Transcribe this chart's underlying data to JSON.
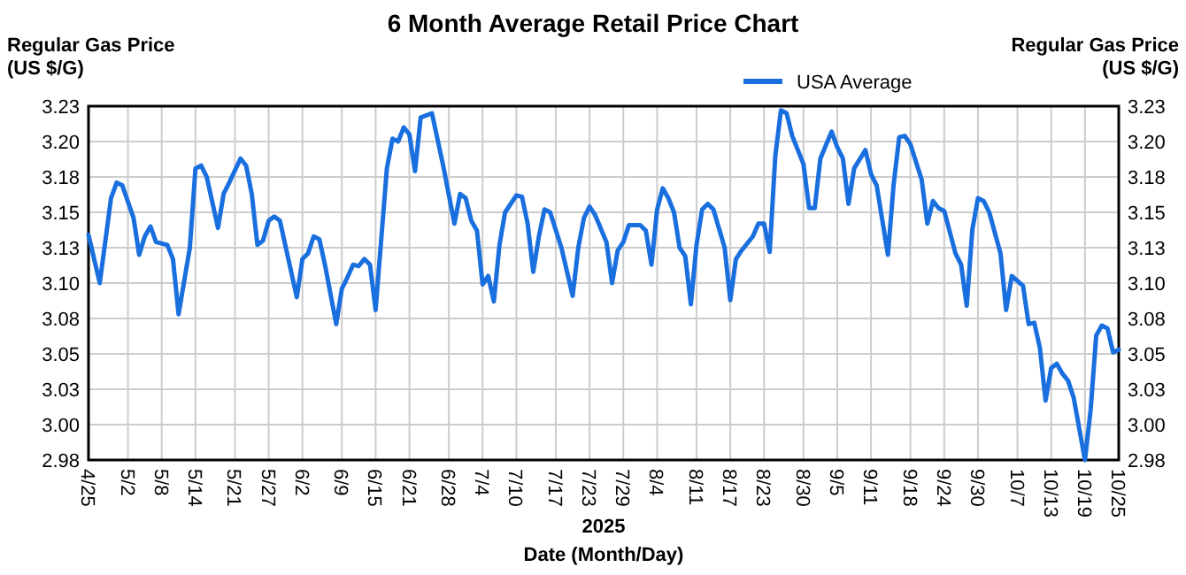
{
  "chart_data": {
    "type": "line",
    "title": "6 Month Average Retail Price Chart",
    "xlabel": "Date (Month/Day)",
    "ylabel": "Regular Gas Price (US $/G)",
    "y2label": "Regular Gas Price (US $/G)",
    "annotations": [
      "2025"
    ],
    "x": [
      "--04-25",
      "--04-27",
      "--04-29",
      "--04-30",
      "--05-01",
      "--05-03",
      "--05-04",
      "--05-05",
      "--05-06",
      "--05-07",
      "--05-09",
      "--05-10",
      "--05-11",
      "--05-13",
      "--05-14",
      "--05-15",
      "--05-16",
      "--05-18",
      "--05-19",
      "--05-20",
      "--05-22",
      "--05-23",
      "--05-24",
      "--05-25",
      "--05-26",
      "--05-27",
      "--05-28",
      "--05-29",
      "--06-01",
      "--06-02",
      "--06-03",
      "--06-04",
      "--06-05",
      "--06-06",
      "--06-08",
      "--06-09",
      "--06-10",
      "--06-11",
      "--06-12",
      "--06-13",
      "--06-14",
      "--06-15",
      "--06-17",
      "--06-18",
      "--06-19",
      "--06-20",
      "--06-21",
      "--06-22",
      "--06-23",
      "--06-25",
      "--06-27",
      "--06-29",
      "--06-30",
      "--07-01",
      "--07-02",
      "--07-03",
      "--07-04",
      "--07-05",
      "--07-06",
      "--07-07",
      "--07-08",
      "--07-10",
      "--07-11",
      "--07-12",
      "--07-13",
      "--07-14",
      "--07-15",
      "--07-16",
      "--07-18",
      "--07-20",
      "--07-21",
      "--07-22",
      "--07-23",
      "--07-24",
      "--07-26",
      "--07-27",
      "--07-28",
      "--07-29",
      "--07-30",
      "--08-01",
      "--08-02",
      "--08-03",
      "--08-04",
      "--08-05",
      "--08-06",
      "--08-07",
      "--08-08",
      "--08-09",
      "--08-10",
      "--08-11",
      "--08-12",
      "--08-13",
      "--08-14",
      "--08-16",
      "--08-17",
      "--08-18",
      "--08-19",
      "--08-21",
      "--08-22",
      "--08-23",
      "--08-24",
      "--08-25",
      "--08-26",
      "--08-27",
      "--08-28",
      "--08-30",
      "--08-31",
      "--09-01",
      "--09-02",
      "--09-04",
      "--09-05",
      "--09-06",
      "--09-07",
      "--09-08",
      "--09-10",
      "--09-11",
      "--09-12",
      "--09-14",
      "--09-15",
      "--09-16",
      "--09-17",
      "--09-18",
      "--09-20",
      "--09-21",
      "--09-22",
      "--09-23",
      "--09-24",
      "--09-26",
      "--09-27",
      "--09-28",
      "--09-29",
      "--09-30",
      "--10-01",
      "--10-02",
      "--10-04",
      "--10-05",
      "--10-06",
      "--10-08",
      "--10-09",
      "--10-10",
      "--10-11",
      "--10-12",
      "--10-13",
      "--10-14",
      "--10-15",
      "--10-16",
      "--10-17",
      "--10-19",
      "--10-20",
      "--10-21",
      "--10-22",
      "--10-23",
      "--10-24",
      "--10-25"
    ],
    "series": [
      {
        "name": "USA Average",
        "color": "#1a6fdf",
        "values": [
          3.134,
          3.1,
          3.16,
          3.171,
          3.169,
          3.146,
          3.12,
          3.133,
          3.14,
          3.129,
          3.127,
          3.117,
          3.078,
          3.125,
          3.181,
          3.183,
          3.175,
          3.139,
          3.163,
          3.171,
          3.188,
          3.183,
          3.163,
          3.127,
          3.13,
          3.144,
          3.147,
          3.144,
          3.09,
          3.117,
          3.121,
          3.133,
          3.131,
          3.113,
          3.071,
          3.096,
          3.104,
          3.113,
          3.112,
          3.117,
          3.113,
          3.081,
          3.181,
          3.202,
          3.2,
          3.21,
          3.205,
          3.179,
          3.217,
          3.22,
          3.183,
          3.142,
          3.163,
          3.16,
          3.144,
          3.137,
          3.099,
          3.105,
          3.087,
          3.127,
          3.15,
          3.162,
          3.161,
          3.142,
          3.108,
          3.133,
          3.152,
          3.15,
          3.125,
          3.091,
          3.125,
          3.146,
          3.154,
          3.148,
          3.129,
          3.1,
          3.123,
          3.129,
          3.141,
          3.141,
          3.137,
          3.113,
          3.152,
          3.167,
          3.16,
          3.15,
          3.125,
          3.119,
          3.085,
          3.127,
          3.152,
          3.156,
          3.152,
          3.125,
          3.088,
          3.117,
          3.123,
          3.133,
          3.142,
          3.142,
          3.122,
          3.19,
          3.222,
          3.22,
          3.204,
          3.184,
          3.153,
          3.153,
          3.188,
          3.207,
          3.196,
          3.188,
          3.156,
          3.181,
          3.194,
          3.177,
          3.169,
          3.12,
          3.169,
          3.203,
          3.204,
          3.198,
          3.173,
          3.142,
          3.158,
          3.153,
          3.151,
          3.121,
          3.113,
          3.084,
          3.138,
          3.16,
          3.158,
          3.15,
          3.121,
          3.081,
          3.105,
          3.098,
          3.071,
          3.072,
          3.054,
          3.017,
          3.04,
          3.043,
          3.036,
          3.031,
          3.019,
          2.975,
          3.01,
          3.063,
          3.07,
          3.068,
          3.051,
          3.053
        ]
      }
    ],
    "xlim": [
      "--04-25",
      "--10-25"
    ],
    "xticks": [
      {
        "value": "--04-25",
        "label": "4/25"
      },
      {
        "value": "--05-02",
        "label": "5/2"
      },
      {
        "value": "--05-08",
        "label": "5/8"
      },
      {
        "value": "--05-14",
        "label": "5/14"
      },
      {
        "value": "--05-21",
        "label": "5/21"
      },
      {
        "value": "--05-27",
        "label": "5/27"
      },
      {
        "value": "--06-02",
        "label": "6/2"
      },
      {
        "value": "--06-09",
        "label": "6/9"
      },
      {
        "value": "--06-15",
        "label": "6/15"
      },
      {
        "value": "--06-21",
        "label": "6/21"
      },
      {
        "value": "--06-28",
        "label": "6/28"
      },
      {
        "value": "--07-04",
        "label": "7/4"
      },
      {
        "value": "--07-10",
        "label": "7/10"
      },
      {
        "value": "--07-17",
        "label": "7/17"
      },
      {
        "value": "--07-23",
        "label": "7/23"
      },
      {
        "value": "--07-29",
        "label": "7/29"
      },
      {
        "value": "--08-04",
        "label": "8/4"
      },
      {
        "value": "--08-11",
        "label": "8/11"
      },
      {
        "value": "--08-17",
        "label": "8/17"
      },
      {
        "value": "--08-23",
        "label": "8/23"
      },
      {
        "value": "--08-30",
        "label": "8/30"
      },
      {
        "value": "--09-05",
        "label": "9/5"
      },
      {
        "value": "--09-11",
        "label": "9/11"
      },
      {
        "value": "--09-18",
        "label": "9/18"
      },
      {
        "value": "--09-24",
        "label": "9/24"
      },
      {
        "value": "--09-30",
        "label": "9/30"
      },
      {
        "value": "--10-07",
        "label": "10/7"
      },
      {
        "value": "--10-13",
        "label": "10/13"
      },
      {
        "value": "--10-19",
        "label": "10/19"
      },
      {
        "value": "--10-25",
        "label": "10/25"
      }
    ],
    "ylim": [
      2.975,
      3.225
    ],
    "yticks": [
      {
        "value": 2.975,
        "label": "2.98"
      },
      {
        "value": 3.0,
        "label": "3.00"
      },
      {
        "value": 3.025,
        "label": "3.03"
      },
      {
        "value": 3.05,
        "label": "3.05"
      },
      {
        "value": 3.075,
        "label": "3.08"
      },
      {
        "value": 3.1,
        "label": "3.10"
      },
      {
        "value": 3.125,
        "label": "3.13"
      },
      {
        "value": 3.15,
        "label": "3.15"
      },
      {
        "value": 3.175,
        "label": "3.18"
      },
      {
        "value": 3.2,
        "label": "3.20"
      },
      {
        "value": 3.225,
        "label": "3.23"
      }
    ],
    "y2lim": [
      2.975,
      3.225
    ],
    "y2ticks": [
      {
        "value": 2.975,
        "label": "2.98"
      },
      {
        "value": 3.0,
        "label": "3.00"
      },
      {
        "value": 3.025,
        "label": "3.03"
      },
      {
        "value": 3.05,
        "label": "3.05"
      },
      {
        "value": 3.075,
        "label": "3.08"
      },
      {
        "value": 3.1,
        "label": "3.10"
      },
      {
        "value": 3.125,
        "label": "3.13"
      },
      {
        "value": 3.15,
        "label": "3.15"
      },
      {
        "value": 3.175,
        "label": "3.18"
      },
      {
        "value": 3.2,
        "label": "3.20"
      },
      {
        "value": 3.225,
        "label": "3.23"
      }
    ],
    "grid": true,
    "legend": "top right",
    "marker": "none",
    "line_style": "solid"
  }
}
